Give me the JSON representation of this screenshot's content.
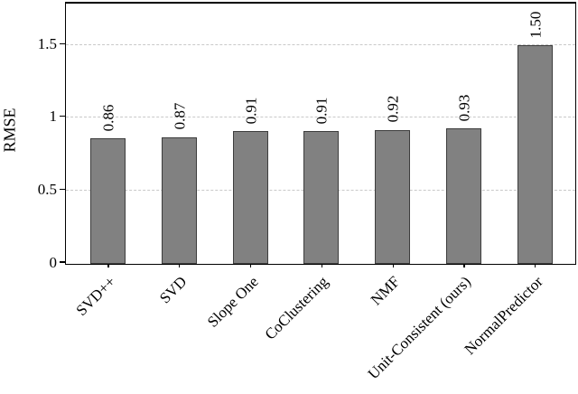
{
  "chart_data": {
    "type": "bar",
    "title": "",
    "xlabel": "",
    "ylabel": "RMSE",
    "categories": [
      "SVD++",
      "SVD",
      "Slope One",
      "CoClustering",
      "NMF",
      "Unit-Consistent (ours)",
      "NormalPredictor"
    ],
    "values": [
      0.86,
      0.87,
      0.91,
      0.91,
      0.92,
      0.93,
      1.5
    ],
    "bar_value_labels": [
      "0.86",
      "0.87",
      "0.91",
      "0.91",
      "0.92",
      "0.93",
      "1.50"
    ],
    "yticks": [
      0,
      0.5,
      1,
      1.5
    ],
    "ytick_labels": [
      "0",
      "0.5",
      "1",
      "1.5"
    ],
    "ylim": [
      0,
      1.78
    ],
    "grid": "horizontal-major-dashed",
    "legend_position": "none",
    "x_tick_label_rotation_deg": 45,
    "bar_value_label_rotation_deg": 90,
    "colors": {
      "bar_fill": "#818181",
      "bar_border": "#3d3d3d",
      "grid": "#c9c9c9",
      "axis_frame": "#000000",
      "text": "#000000",
      "background": "#ffffff"
    }
  }
}
